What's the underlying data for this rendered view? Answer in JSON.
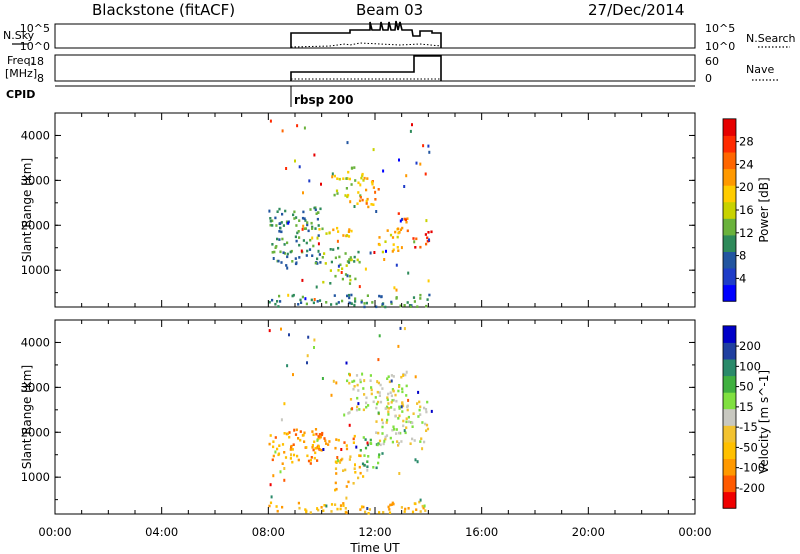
{
  "header": {
    "radar": "Blackstone (fitACF)",
    "beam": "Beam 03",
    "date": "27/Dec/2014"
  },
  "summary": {
    "nsky_label": "N.Sky",
    "nsky_ticks": [
      "10^5",
      "10^0"
    ],
    "nsky_right_ticks": [
      "10^5",
      "10^0"
    ],
    "nsearch_label": "N.Search",
    "freq_label_1": "Freq.",
    "freq_label_2": "[MHz]",
    "freq_ticks": [
      "18",
      "8"
    ],
    "nave_ticks": [
      "60",
      "0"
    ],
    "nave_label": "Nave",
    "cpid_label": "CPID",
    "cpid_name": "rbsp 200"
  },
  "colors": {
    "power_scale": [
      "#0000ff",
      "#1e3cc8",
      "#2255a0",
      "#2e8a5a",
      "#6ab23c",
      "#c8d200",
      "#ffcc00",
      "#ff9900",
      "#ff6600",
      "#ff2a00",
      "#e60000"
    ],
    "velocity_scale": [
      "#f00000",
      "#ff5a00",
      "#ff9900",
      "#ffc000",
      "#f2c230",
      "#c8c8c0",
      "#80e040",
      "#40b040",
      "#2a8a6a",
      "#2040a0",
      "#0000c8"
    ],
    "ground_scatter": "#c8c8c0"
  },
  "chart_data": [
    {
      "type": "heatmap",
      "panel": "power",
      "ylabel": "Slant Range [km]",
      "yticks": [
        "4000",
        "3000",
        "2000",
        "1000"
      ],
      "ylim": [
        180,
        4500
      ],
      "x_range_hours": [
        0,
        24
      ],
      "colorbar_label": "Power [dB]",
      "colorbar_ticks": [
        "28",
        "24",
        "20",
        "16",
        "12",
        "8",
        "4"
      ],
      "colorbar_range": [
        0,
        30
      ],
      "data_time_span_hours": [
        8.0,
        14.1
      ],
      "regions": [
        {
          "t": [
            8.0,
            10.0
          ],
          "range": [
            1100,
            2400
          ],
          "level": 3
        },
        {
          "t": [
            9.6,
            11.3
          ],
          "range": [
            1700,
            1950
          ],
          "level": 6
        },
        {
          "t": [
            10.4,
            11.6
          ],
          "range": [
            2600,
            3300
          ],
          "level": 5
        },
        {
          "t": [
            11.3,
            12.1
          ],
          "range": [
            2400,
            3050
          ],
          "level": 7
        },
        {
          "t": [
            12.1,
            12.9
          ],
          "range": [
            1400,
            2000
          ],
          "level": 6
        },
        {
          "t": [
            12.8,
            13.2
          ],
          "range": [
            1800,
            2300
          ],
          "level": 8
        },
        {
          "t": [
            13.4,
            14.1
          ],
          "range": [
            1500,
            1900
          ],
          "level": 9
        },
        {
          "t": [
            10.0,
            11.4
          ],
          "range": [
            700,
            1500
          ],
          "level": 4
        },
        {
          "t": [
            8.0,
            14.0
          ],
          "range": [
            180,
            450
          ],
          "level": 3
        }
      ]
    },
    {
      "type": "heatmap",
      "panel": "velocity",
      "ylabel": "Slant Range [km]",
      "xlabel": "Time UT",
      "yticks": [
        "4000",
        "3000",
        "2000",
        "1000"
      ],
      "xticks": [
        "00:00",
        "04:00",
        "08:00",
        "12:00",
        "16:00",
        "20:00",
        "00:00"
      ],
      "ylim": [
        180,
        4500
      ],
      "x_range_hours": [
        0,
        24
      ],
      "colorbar_label": "Velocity [m s^-1]",
      "colorbar_ticks": [
        "200",
        "100",
        "50",
        "15",
        "-15",
        "-50",
        "-100",
        "-200"
      ],
      "colorbar_range": [
        -250,
        250
      ],
      "data_time_span_hours": [
        8.0,
        14.1
      ],
      "regions": [
        {
          "t": [
            8.0,
            10.0
          ],
          "range": [
            1300,
            2100
          ],
          "level": 2
        },
        {
          "t": [
            9.6,
            11.3
          ],
          "range": [
            1600,
            1950
          ],
          "level": 2
        },
        {
          "t": [
            10.4,
            11.6
          ],
          "range": [
            700,
            1500
          ],
          "level": 3
        },
        {
          "t": [
            10.8,
            13.2
          ],
          "range": [
            2400,
            3300
          ],
          "level": 5
        },
        {
          "t": [
            12.0,
            14.0
          ],
          "range": [
            1700,
            2700
          ],
          "level": 5
        },
        {
          "t": [
            11.4,
            12.4
          ],
          "range": [
            1200,
            1900
          ],
          "level": 7
        },
        {
          "t": [
            8.0,
            14.0
          ],
          "range": [
            180,
            450
          ],
          "level": 3
        }
      ]
    }
  ]
}
